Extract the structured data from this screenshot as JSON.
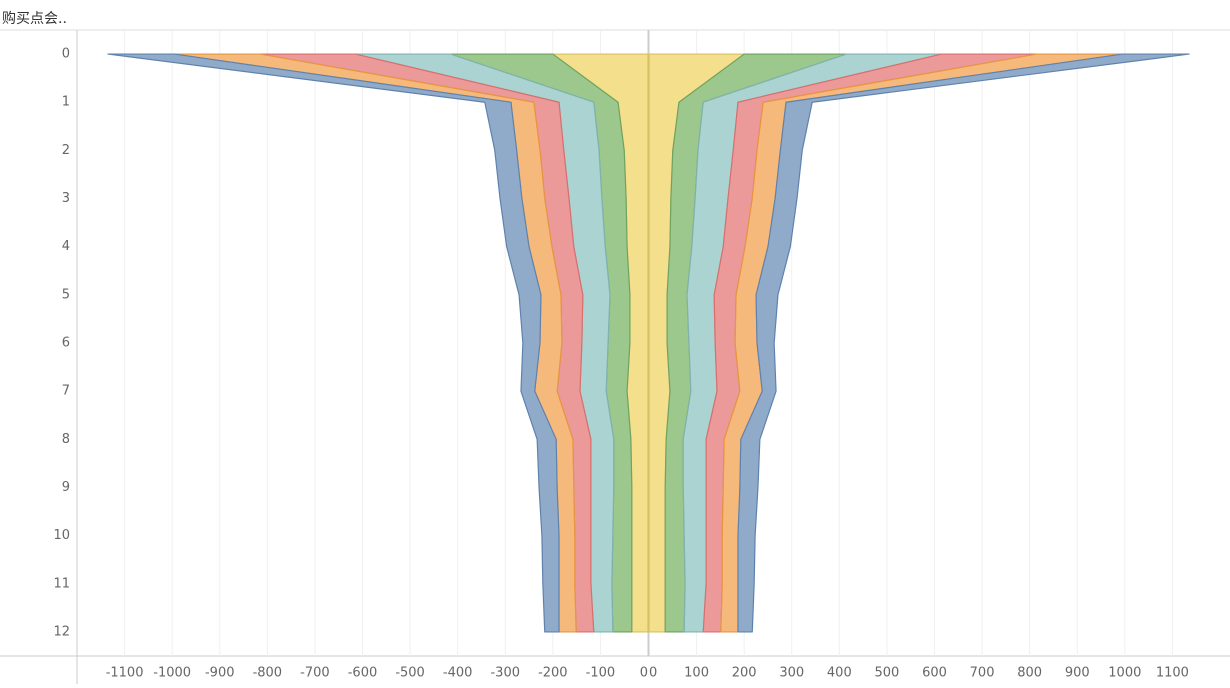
{
  "chart_data": {
    "type": "butterfly-area",
    "title": "购买点会..",
    "categories": [
      0,
      1,
      2,
      3,
      4,
      5,
      6,
      7,
      8,
      9,
      10,
      11,
      12
    ],
    "series": [
      {
        "color": "#f3df8c",
        "stroke": "#d9c060",
        "values": [
          200,
          63,
          50,
          46,
          44,
          38,
          38,
          44,
          36,
          34,
          34,
          34,
          34
        ]
      },
      {
        "color": "#9cc78d",
        "stroke": "#6fa35f",
        "values": [
          215,
          51,
          53,
          51,
          46,
          42,
          46,
          44,
          36,
          38,
          40,
          42,
          40
        ]
      },
      {
        "color": "#abd3d1",
        "stroke": "#7fb3b0",
        "values": [
          200,
          73,
          74,
          69,
          66,
          57,
          55,
          55,
          48,
          48,
          46,
          44,
          40
        ]
      },
      {
        "color": "#ec9a99",
        "stroke": "#d86f6e",
        "values": [
          200,
          53,
          50,
          51,
          46,
          46,
          42,
          48,
          38,
          36,
          34,
          34,
          37
        ]
      },
      {
        "color": "#f6b97c",
        "stroke": "#e8963f",
        "values": [
          180,
          48,
          49,
          48,
          48,
          42,
          46,
          47,
          35,
          35,
          33,
          33,
          36
        ]
      },
      {
        "color": "#90abca",
        "stroke": "#5f82ad",
        "values": [
          140,
          55,
          46,
          46,
          47,
          46,
          36,
          29,
          40,
          38,
          36,
          34,
          30
        ]
      }
    ],
    "panes": [
      {
        "xlim": [
          -1200,
          0
        ],
        "xticks": [
          -1100,
          -1000,
          -900,
          -800,
          -700,
          -600,
          -500,
          -400,
          -300,
          -200,
          -100,
          0
        ]
      },
      {
        "xlim": [
          0,
          1200
        ],
        "xticks": [
          0,
          100,
          200,
          300,
          400,
          500,
          600,
          700,
          800,
          900,
          1000,
          1100
        ]
      }
    ],
    "grid": true
  }
}
